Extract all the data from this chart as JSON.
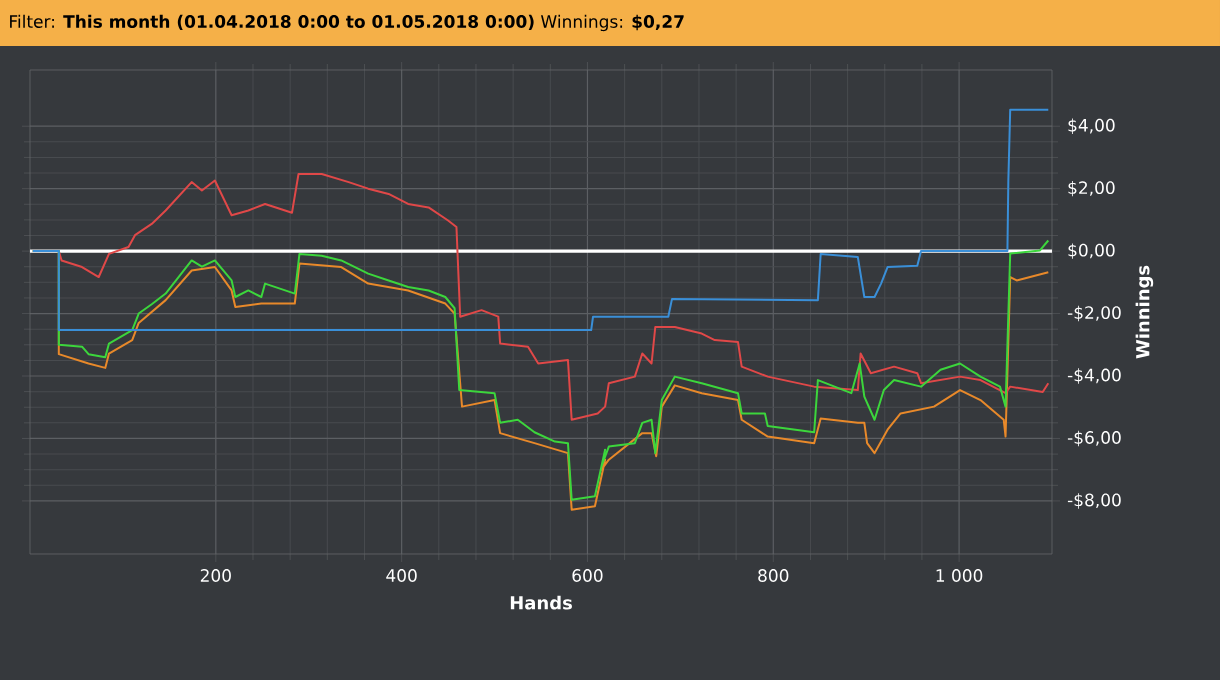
{
  "chart_data": {
    "type": "line",
    "title": "Filter: **This month (01.04.2018 0:00 to 01.05.2018 0:00)** Winnings: **$0,27**",
    "xlabel": "Hands",
    "ylabel": "Winnings",
    "xlim": [
      0,
      1100
    ],
    "ylim": [
      -9.7,
      5.8
    ],
    "xticks": [
      200,
      400,
      600,
      800,
      {
        "value": 1000,
        "label": "1 000"
      }
    ],
    "yticks": [
      {
        "value": -8,
        "label": "-$8,00"
      },
      {
        "value": -6,
        "label": "-$6,00"
      },
      {
        "value": -4,
        "label": "-$4,00"
      },
      {
        "value": -2,
        "label": "-$2,00"
      },
      {
        "value": 0,
        "label": "$0,00"
      },
      {
        "value": 2,
        "label": "$2,00"
      },
      {
        "value": 4,
        "label": "$4,00"
      }
    ],
    "grid": true,
    "marker": "none",
    "line_style": "solid",
    "ref_lines": [
      {
        "axis": "y",
        "value": 0,
        "color": "#ffffff"
      }
    ],
    "series": [
      {
        "color": "#e8892a",
        "x": [
          3,
          31,
          31,
          63,
          81,
          85,
          110,
          117,
          146,
          174,
          199,
          217,
          221,
          249,
          285,
          290,
          335,
          364,
          407,
          447,
          457,
          465,
          500,
          506,
          543,
          579,
          583,
          608,
          619,
          615,
          623,
          659,
          669,
          674,
          680,
          694,
          723,
          762,
          766,
          794,
          844,
          851,
          891,
          898,
          901,
          909,
          923,
          937,
          973,
          1001,
          1023,
          1048,
          1050,
          1055,
          1062,
          1096
        ],
        "values": [
          0,
          0,
          -3.3,
          -3.6,
          -3.74,
          -3.28,
          -2.85,
          -2.3,
          -1.57,
          -0.62,
          -0.51,
          -1.26,
          -1.79,
          -1.68,
          -1.68,
          -0.4,
          -0.51,
          -1.04,
          -1.26,
          -1.68,
          -2.0,
          -4.98,
          -4.77,
          -5.83,
          -6.15,
          -6.47,
          -8.28,
          -8.17,
          -6.68,
          -7.0,
          -6.68,
          -5.83,
          -5.83,
          -6.57,
          -4.98,
          -4.3,
          -4.55,
          -4.77,
          -5.4,
          -5.94,
          -6.15,
          -5.36,
          -5.5,
          -5.5,
          -6.15,
          -6.47,
          -5.72,
          -5.2,
          -4.98,
          -4.45,
          -4.77,
          -5.4,
          -5.94,
          -0.83,
          -0.94,
          -0.68
        ]
      },
      {
        "color": "#e04848",
        "x": [
          3,
          31,
          34,
          56,
          74,
          85,
          106,
          113,
          131,
          146,
          174,
          185,
          199,
          217,
          235,
          253,
          282,
          289,
          314,
          343,
          364,
          386,
          407,
          429,
          450,
          459,
          463,
          486,
          504,
          506,
          536,
          547,
          579,
          583,
          611,
          619,
          623,
          651,
          659,
          669,
          673,
          694,
          723,
          737,
          762,
          766,
          794,
          844,
          891,
          894,
          905,
          930,
          955,
          959,
          1001,
          1023,
          1050,
          1055,
          1090,
          1096
        ],
        "values": [
          0,
          0,
          -0.3,
          -0.51,
          -0.83,
          -0.09,
          0.13,
          0.51,
          0.87,
          1.3,
          2.21,
          1.94,
          2.26,
          1.15,
          1.3,
          1.51,
          1.23,
          2.47,
          2.47,
          2.21,
          2.0,
          1.83,
          1.51,
          1.4,
          0.98,
          0.77,
          -2.1,
          -1.89,
          -2.1,
          -2.96,
          -3.06,
          -3.6,
          -3.49,
          -5.4,
          -5.2,
          -4.98,
          -4.23,
          -4.02,
          -3.28,
          -3.6,
          -2.43,
          -2.43,
          -2.64,
          -2.85,
          -2.91,
          -3.7,
          -4.02,
          -4.34,
          -4.45,
          -3.28,
          -3.91,
          -3.7,
          -3.91,
          -4.23,
          -4.02,
          -4.13,
          -4.55,
          -4.34,
          -4.51,
          -4.23
        ]
      },
      {
        "color": "#3cd63c",
        "x": [
          3,
          31,
          31,
          56,
          63,
          81,
          85,
          110,
          117,
          131,
          146,
          174,
          185,
          199,
          217,
          221,
          235,
          249,
          253,
          285,
          290,
          314,
          335,
          364,
          386,
          407,
          429,
          447,
          457,
          462,
          500,
          506,
          525,
          543,
          565,
          579,
          583,
          608,
          619,
          615,
          623,
          651,
          659,
          669,
          673,
          680,
          694,
          723,
          762,
          766,
          791,
          794,
          844,
          848,
          884,
          893,
          898,
          909,
          919,
          930,
          959,
          980,
          1001,
          1023,
          1044,
          1050,
          1055,
          1087,
          1096
        ],
        "values": [
          0,
          0,
          -3.0,
          -3.06,
          -3.3,
          -3.4,
          -2.96,
          -2.53,
          -2.0,
          -1.7,
          -1.36,
          -0.3,
          -0.5,
          -0.3,
          -0.94,
          -1.47,
          -1.26,
          -1.47,
          -1.04,
          -1.36,
          -0.09,
          -0.15,
          -0.3,
          -0.72,
          -0.94,
          -1.15,
          -1.26,
          -1.47,
          -1.83,
          -4.45,
          -4.55,
          -5.5,
          -5.4,
          -5.8,
          -6.1,
          -6.15,
          -7.96,
          -7.85,
          -6.36,
          -6.9,
          -6.26,
          -6.15,
          -5.5,
          -5.4,
          -6.47,
          -4.77,
          -4.02,
          -4.23,
          -4.55,
          -5.2,
          -5.2,
          -5.6,
          -5.8,
          -4.13,
          -4.55,
          -3.6,
          -4.66,
          -5.4,
          -4.45,
          -4.13,
          -4.34,
          -3.8,
          -3.6,
          -4.02,
          -4.34,
          -4.98,
          -0.08,
          0.02,
          0.34
        ]
      },
      {
        "color": "#3a8fd8",
        "x": [
          3,
          31,
          31,
          604,
          606,
          687,
          691,
          848,
          851,
          891,
          898,
          909,
          916,
          923,
          955,
          959,
          1052,
          1053,
          1055,
          1096
        ],
        "values": [
          0,
          0,
          -2.53,
          -2.53,
          -2.1,
          -2.1,
          -1.53,
          -1.57,
          -0.09,
          -0.19,
          -1.47,
          -1.47,
          -1.04,
          -0.51,
          -0.47,
          0,
          0,
          2.26,
          4.53,
          4.53
        ]
      }
    ]
  }
}
